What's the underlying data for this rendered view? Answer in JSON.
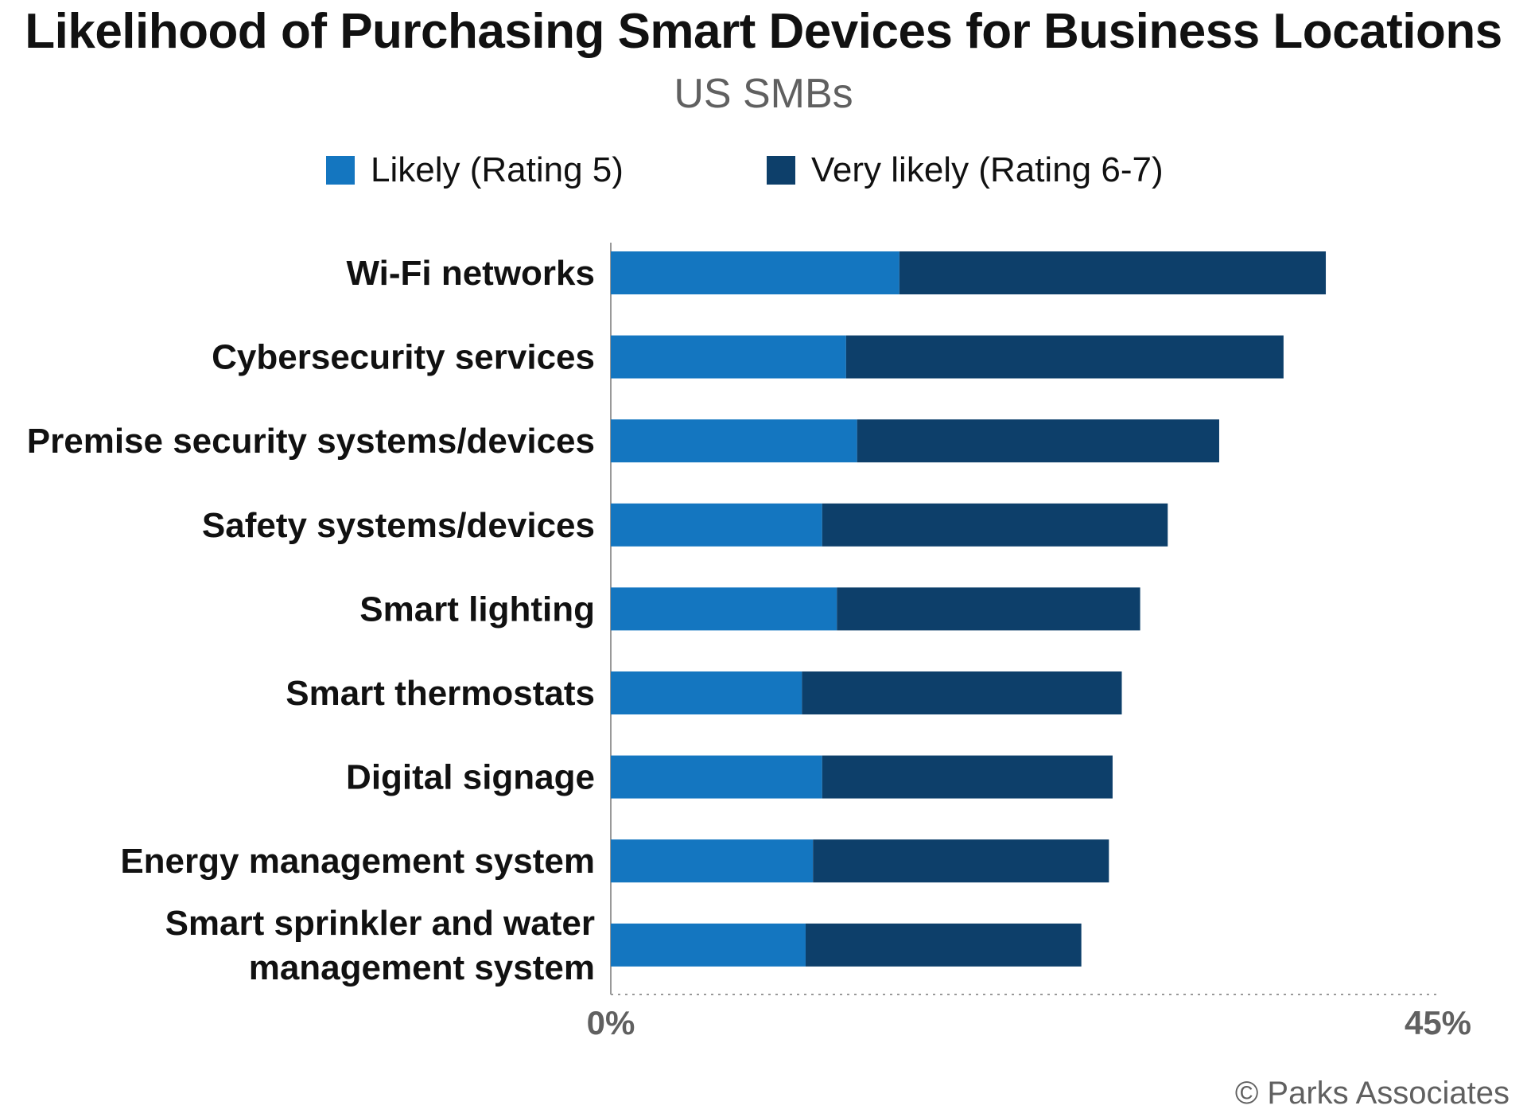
{
  "colors": {
    "likely": "#1476c0",
    "very_likely": "#0d3f6a",
    "axis": "#999999",
    "text": "#111111",
    "muted": "#606060"
  },
  "chart_data": {
    "type": "bar",
    "orientation": "horizontal",
    "stacked": true,
    "title": "Likelihood of Purchasing Smart Devices for Business Locations",
    "subtitle": "US SMBs",
    "categories": [
      "Wi-Fi networks",
      "Cybersecurity services",
      "Premise security systems/devices",
      "Safety systems/devices",
      "Smart lighting",
      "Smart thermostats",
      "Digital signage",
      "Energy management system",
      "Smart sprinkler and water management system"
    ],
    "series": [
      {
        "name": "Likely (Rating 5)",
        "values": [
          15.7,
          12.8,
          13.4,
          11.5,
          12.3,
          10.4,
          11.5,
          11.0,
          10.6
        ]
      },
      {
        "name": "Very likely (Rating 6-7)",
        "values": [
          23.2,
          23.8,
          19.7,
          18.8,
          16.5,
          17.4,
          15.8,
          16.1,
          15.0
        ]
      }
    ],
    "xlim": [
      0,
      45
    ],
    "tick_labels": [
      "0%",
      "45%"
    ],
    "xlabel": "",
    "ylabel": "",
    "legend_position": "top",
    "grid": false
  },
  "credit": "© Parks Associates"
}
